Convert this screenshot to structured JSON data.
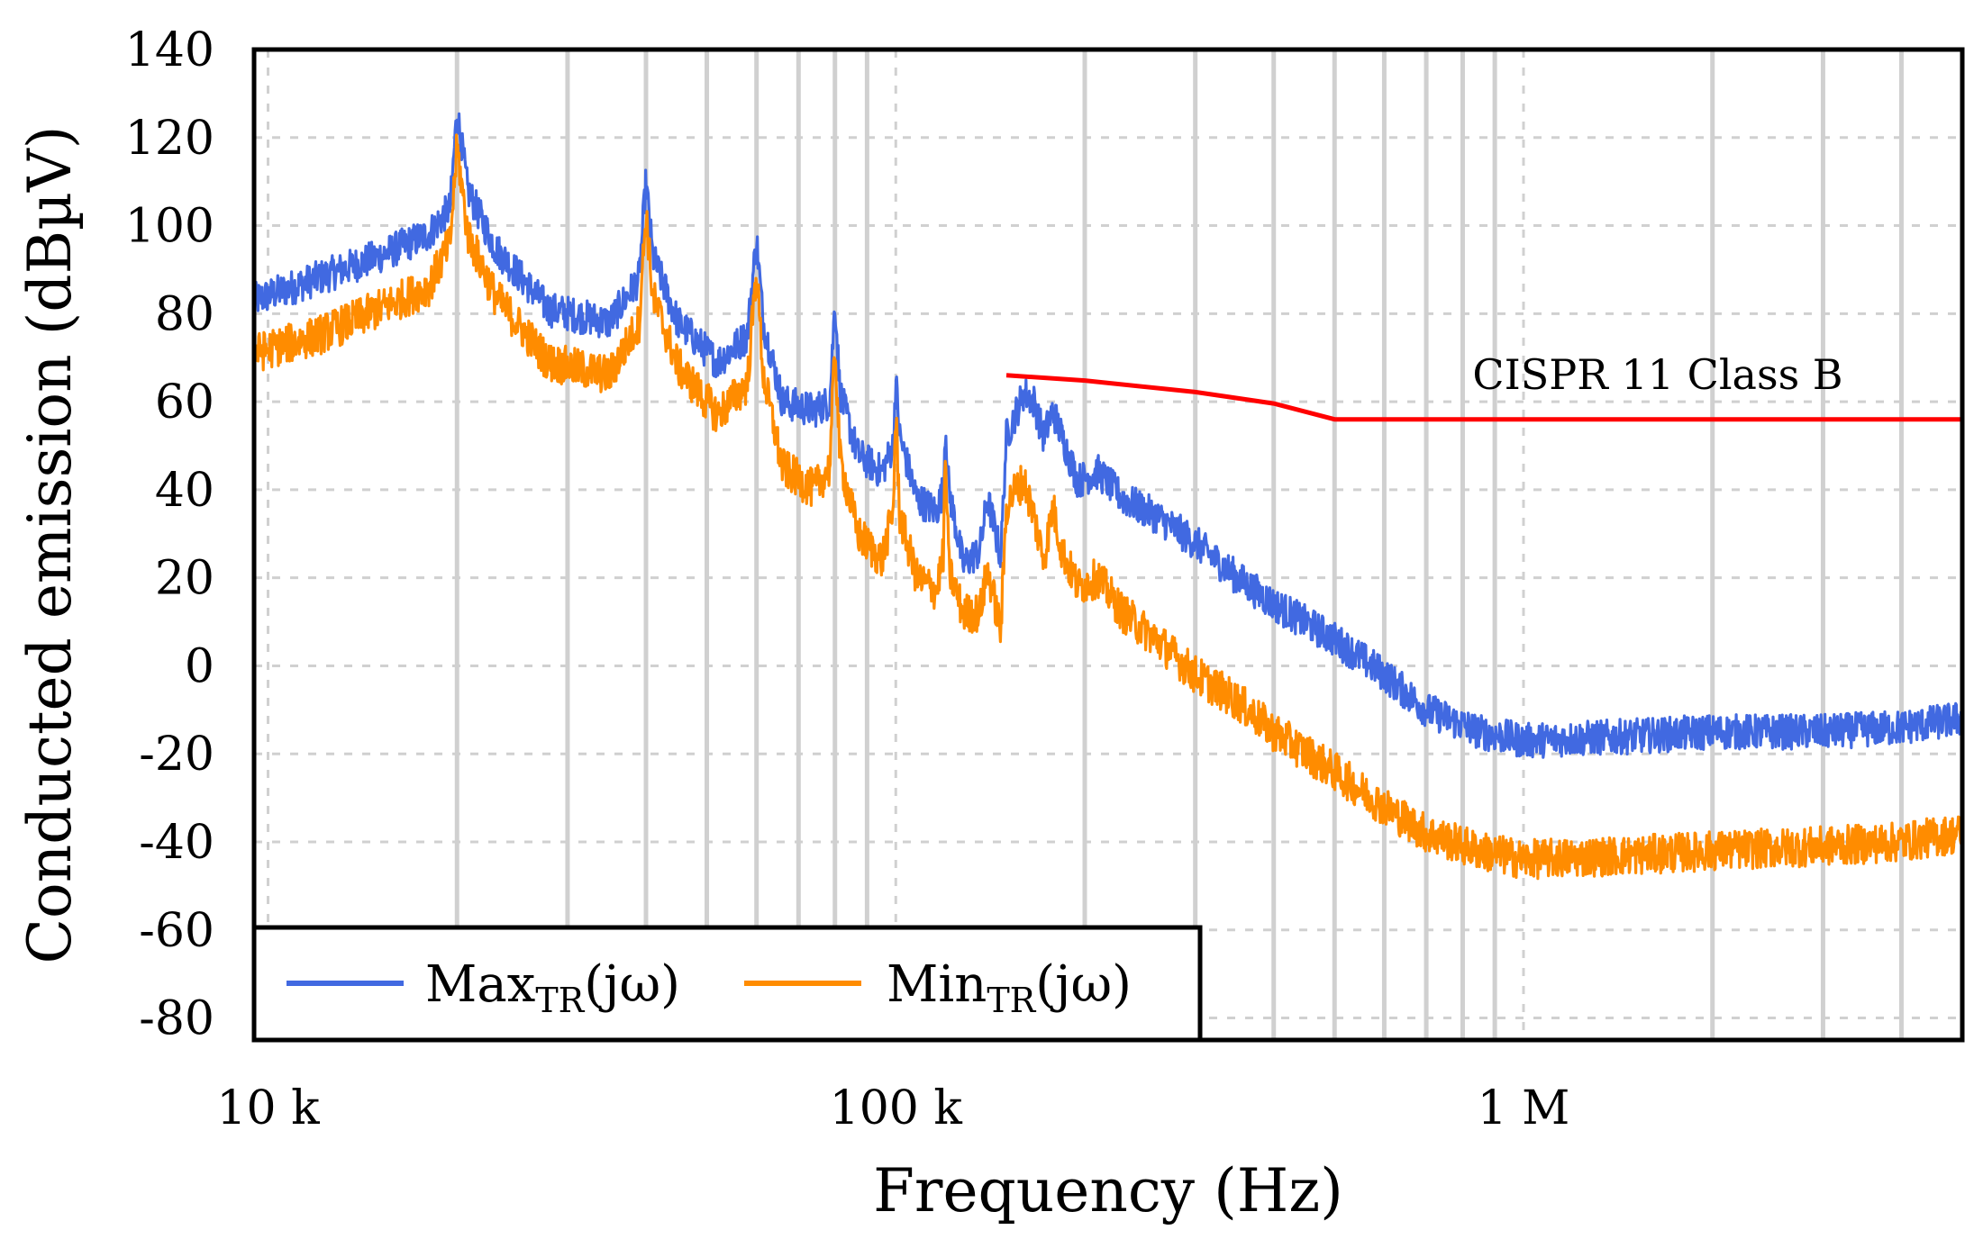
{
  "chart_data": {
    "type": "line",
    "xscale": "log",
    "xlabel": "Frequency (Hz)",
    "ylabel": "Conducted emission (dBµV)",
    "xlim": [
      9500,
      5000000
    ],
    "ylim": [
      -85,
      140
    ],
    "grid": true,
    "x_ticks": [
      {
        "value": 10000,
        "label": "10 k"
      },
      {
        "value": 100000,
        "label": "100 k"
      },
      {
        "value": 1000000,
        "label": "1 M"
      }
    ],
    "y_ticks": [
      140,
      120,
      100,
      80,
      60,
      40,
      20,
      0,
      -20,
      -40,
      -60,
      -80
    ],
    "legend_position": "bottom-left",
    "series": [
      {
        "name": "Max",
        "subscript": "TR",
        "suffix": "(jω)",
        "color": "#4169e1",
        "points": [
          [
            9500,
            83
          ],
          [
            12000,
            88
          ],
          [
            15000,
            93
          ],
          [
            18000,
            98
          ],
          [
            19500,
            104
          ],
          [
            20000,
            126
          ],
          [
            20800,
            108
          ],
          [
            23000,
            95
          ],
          [
            28000,
            81
          ],
          [
            35000,
            78
          ],
          [
            39000,
            88
          ],
          [
            40000,
            110
          ],
          [
            41000,
            93
          ],
          [
            45000,
            78
          ],
          [
            52000,
            69
          ],
          [
            58000,
            75
          ],
          [
            60000,
            97
          ],
          [
            61500,
            78
          ],
          [
            66000,
            60
          ],
          [
            74000,
            58
          ],
          [
            78500,
            60
          ],
          [
            80000,
            83
          ],
          [
            81500,
            62
          ],
          [
            87000,
            48
          ],
          [
            95000,
            44
          ],
          [
            99000,
            50
          ],
          [
            100000,
            65
          ],
          [
            101500,
            52
          ],
          [
            108000,
            38
          ],
          [
            116000,
            35
          ],
          [
            119000,
            40
          ],
          [
            120000,
            55
          ],
          [
            121500,
            40
          ],
          [
            128000,
            23
          ],
          [
            136000,
            26
          ],
          [
            140000,
            38
          ],
          [
            147000,
            25
          ],
          [
            150000,
            52
          ],
          [
            155000,
            57
          ],
          [
            160000,
            62
          ],
          [
            166000,
            60
          ],
          [
            172000,
            52
          ],
          [
            178000,
            58
          ],
          [
            184000,
            52
          ],
          [
            195000,
            42
          ],
          [
            210000,
            44
          ],
          [
            230000,
            38
          ],
          [
            260000,
            34
          ],
          [
            300000,
            28
          ],
          [
            350000,
            20
          ],
          [
            400000,
            14
          ],
          [
            500000,
            6
          ],
          [
            600000,
            -2
          ],
          [
            700000,
            -10
          ],
          [
            850000,
            -15
          ],
          [
            1000000,
            -17
          ],
          [
            1500000,
            -16
          ],
          [
            2000000,
            -15
          ],
          [
            3000000,
            -15
          ],
          [
            4000000,
            -14
          ],
          [
            5000000,
            -12
          ]
        ]
      },
      {
        "name": "Min",
        "subscript": "TR",
        "suffix": "(jω)",
        "color": "#ff8c00",
        "points": [
          [
            9500,
            71
          ],
          [
            12000,
            75
          ],
          [
            15000,
            81
          ],
          [
            18000,
            86
          ],
          [
            19500,
            96
          ],
          [
            20000,
            118
          ],
          [
            20800,
            98
          ],
          [
            23000,
            84
          ],
          [
            28000,
            69
          ],
          [
            35000,
            66
          ],
          [
            39000,
            78
          ],
          [
            40000,
            103
          ],
          [
            41000,
            84
          ],
          [
            45000,
            68
          ],
          [
            52000,
            57
          ],
          [
            58000,
            64
          ],
          [
            60000,
            90
          ],
          [
            61500,
            66
          ],
          [
            66000,
            45
          ],
          [
            74000,
            40
          ],
          [
            78500,
            45
          ],
          [
            80000,
            73
          ],
          [
            81500,
            47
          ],
          [
            87000,
            30
          ],
          [
            95000,
            24
          ],
          [
            99000,
            35
          ],
          [
            100000,
            57
          ],
          [
            101500,
            34
          ],
          [
            108000,
            20
          ],
          [
            116000,
            17
          ],
          [
            119000,
            25
          ],
          [
            120000,
            48
          ],
          [
            121500,
            22
          ],
          [
            128000,
            12
          ],
          [
            136000,
            12
          ],
          [
            140000,
            22
          ],
          [
            147000,
            8
          ],
          [
            150000,
            36
          ],
          [
            155000,
            40
          ],
          [
            160000,
            42
          ],
          [
            166000,
            34
          ],
          [
            172000,
            24
          ],
          [
            178000,
            36
          ],
          [
            184000,
            26
          ],
          [
            195000,
            18
          ],
          [
            210000,
            20
          ],
          [
            230000,
            12
          ],
          [
            260000,
            6
          ],
          [
            300000,
            -2
          ],
          [
            350000,
            -8
          ],
          [
            400000,
            -15
          ],
          [
            500000,
            -24
          ],
          [
            600000,
            -32
          ],
          [
            700000,
            -38
          ],
          [
            850000,
            -42
          ],
          [
            1000000,
            -44
          ],
          [
            1500000,
            -43
          ],
          [
            2000000,
            -42
          ],
          [
            3000000,
            -41
          ],
          [
            4000000,
            -40
          ],
          [
            5000000,
            -38
          ]
        ]
      }
    ],
    "limit_line": {
      "label": "CISPR 11 Class B",
      "color": "#ff0000",
      "points": [
        [
          150000,
          66
        ],
        [
          200000,
          64.8
        ],
        [
          300000,
          62.2
        ],
        [
          400000,
          59.6
        ],
        [
          500000,
          56
        ],
        [
          5000000,
          56
        ]
      ]
    }
  }
}
